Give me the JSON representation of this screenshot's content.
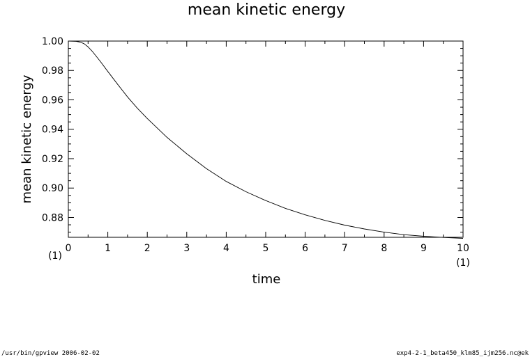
{
  "chart_data": {
    "type": "line",
    "title": "mean kinetic energy",
    "xlabel": "time",
    "ylabel": "mean kinetic energy",
    "x_unit": "(1)",
    "y_unit": "(1)",
    "xlim": [
      0,
      10
    ],
    "ylim": [
      0.8665,
      1.0
    ],
    "x_ticks": [
      0,
      1,
      2,
      3,
      4,
      5,
      6,
      7,
      8,
      9,
      10
    ],
    "y_ticks": [
      "1.00",
      "0.98",
      "0.96",
      "0.94",
      "0.92",
      "0.90",
      "0.88"
    ],
    "grid": false,
    "series": [
      {
        "color": "#000000",
        "x": [
          0,
          0.2,
          0.3,
          0.4,
          0.5,
          0.6,
          0.8,
          1.0,
          1.25,
          1.5,
          1.75,
          2.0,
          2.5,
          3.0,
          3.5,
          4.0,
          4.5,
          5.0,
          5.5,
          6.0,
          6.5,
          7.0,
          7.5,
          8.0,
          8.5,
          9.0,
          9.5,
          10.0
        ],
        "y": [
          1.0,
          0.9998,
          0.9993,
          0.9982,
          0.996,
          0.9932,
          0.9865,
          0.9793,
          0.9705,
          0.962,
          0.9542,
          0.9473,
          0.9345,
          0.9233,
          0.9132,
          0.9045,
          0.8975,
          0.8915,
          0.8862,
          0.8818,
          0.878,
          0.8748,
          0.8722,
          0.87,
          0.8683,
          0.8672,
          0.8664,
          0.8658
        ]
      }
    ]
  },
  "footer": {
    "left": "/usr/bin/gpview  2006-02-02",
    "right": "exp4-2-1_beta450_klm85_ijm256.nc@ek"
  }
}
